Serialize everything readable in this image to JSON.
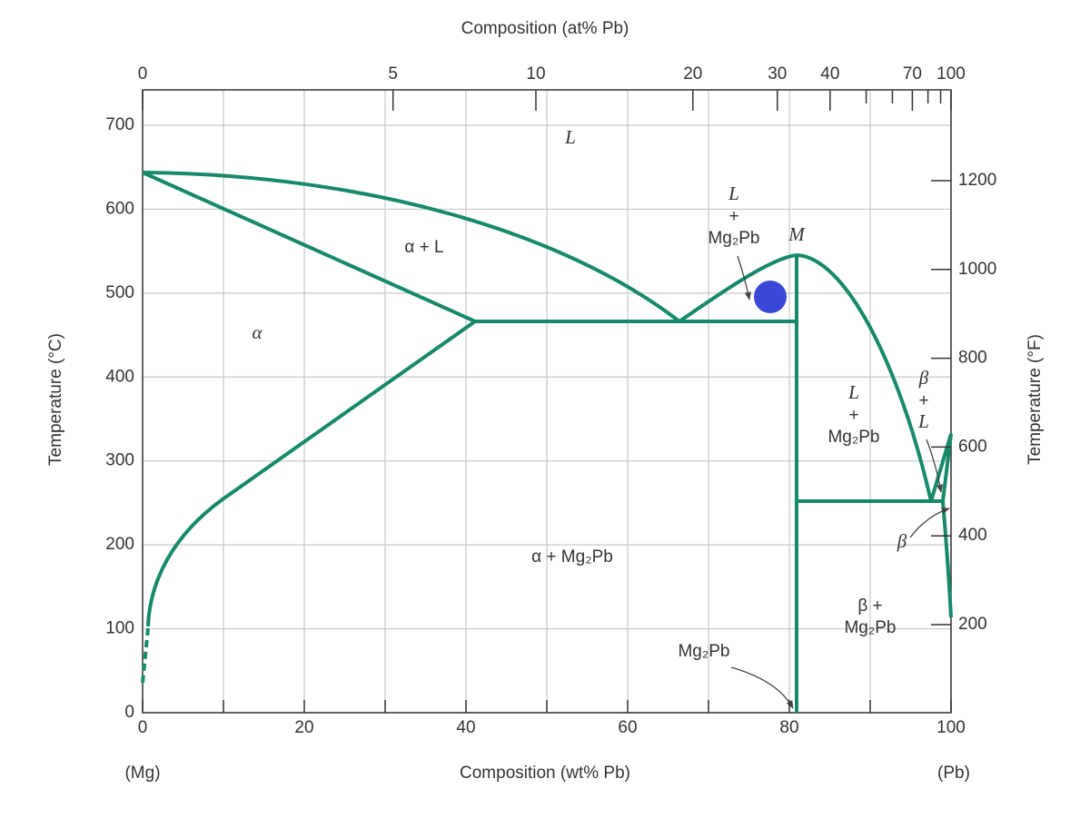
{
  "top_axis": {
    "title": "Composition (at% Pb)",
    "ticks": [
      0,
      5,
      10,
      20,
      30,
      40,
      70,
      100
    ],
    "minor_ticks": [
      50,
      60,
      80,
      90
    ]
  },
  "bottom_axis": {
    "title": "Composition (wt% Pb)",
    "ticks": [
      0,
      20,
      40,
      60,
      80,
      100
    ],
    "minor_ticks": [
      10,
      30,
      50,
      70,
      90
    ],
    "left_end": "(Mg)",
    "right_end": "(Pb)"
  },
  "left_axis": {
    "title": "Temperature (°C)",
    "ticks": [
      0,
      100,
      200,
      300,
      400,
      500,
      600,
      700
    ]
  },
  "right_axis": {
    "title": "Temperature (°F)",
    "ticks": [
      200,
      400,
      600,
      800,
      1000,
      1200
    ]
  },
  "regions": [
    {
      "label": [
        "L"
      ]
    },
    {
      "label": [
        "α + L"
      ]
    },
    {
      "label": [
        "α"
      ]
    },
    {
      "label": [
        "L",
        "+",
        "Mg₂Pb"
      ]
    },
    {
      "label": [
        "M"
      ]
    },
    {
      "label": [
        "L",
        "+",
        "Mg₂Pb"
      ]
    },
    {
      "label": [
        "β",
        "+",
        "L"
      ]
    },
    {
      "label": [
        "α + Mg₂Pb"
      ]
    },
    {
      "label": [
        "β"
      ]
    },
    {
      "label": [
        "β +",
        "Mg₂Pb"
      ]
    },
    {
      "label": [
        "Mg₂Pb"
      ]
    }
  ]
}
